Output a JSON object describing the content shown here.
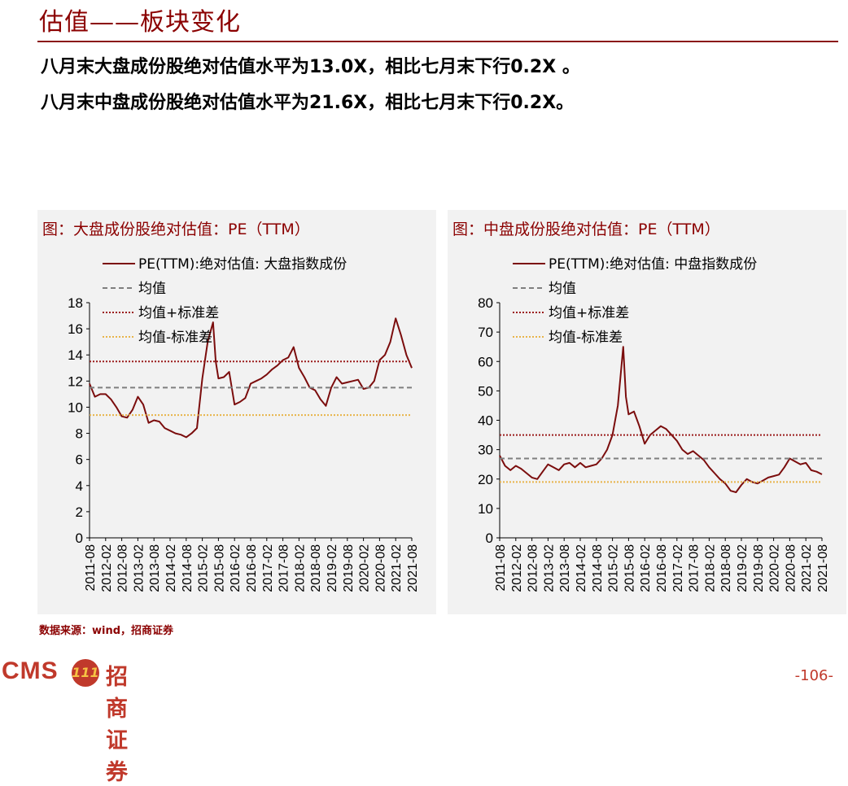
{
  "page": {
    "title": "估值——板块变化",
    "summary_line1": "八月末大盘成份股绝对估值水平为13.0X，相比七月末下行0.2X 。",
    "summary_line2": "八月末中盘成份股绝对估值水平为21.6X，相比七月末下行0.2X。",
    "source": "数据来源：wind，招商证券",
    "page_number": "-106-",
    "logo_text": "CMS",
    "logo_badge_text": "111",
    "logo_name": "招商证券"
  },
  "colors": {
    "series": "#7b0d0d",
    "mean": "#7f7f7f",
    "upper": "#9b1c1c",
    "lower": "#e8b44a",
    "panel_bg": "#f2f2f2",
    "accent": "#8b0000"
  },
  "chart_data": [
    {
      "type": "line",
      "title": "图：大盘成份股绝对估值：PE（TTM）",
      "legend_position": "top-left",
      "grid": false,
      "ylim": [
        0,
        18
      ],
      "y_ticks": [
        "0",
        "2",
        "4",
        "6",
        "8",
        "10",
        "12",
        "14",
        "16",
        "18"
      ],
      "x_ticks": [
        "2011-08",
        "2012-02",
        "2012-08",
        "2013-02",
        "2013-08",
        "2014-02",
        "2014-08",
        "2015-02",
        "2015-08",
        "2016-02",
        "2016-08",
        "2017-02",
        "2017-08",
        "2018-02",
        "2018-08",
        "2019-02",
        "2019-08",
        "2020-02",
        "2020-08",
        "2021-02",
        "2021-08"
      ],
      "series": [
        {
          "name": "PE(TTM):绝对估值: 大盘指数成份",
          "style": "solid",
          "points": [
            [
              "2011-08",
              11.8
            ],
            [
              "2011-10",
              10.8
            ],
            [
              "2011-12",
              11.0
            ],
            [
              "2012-02",
              11.0
            ],
            [
              "2012-04",
              10.6
            ],
            [
              "2012-06",
              10.0
            ],
            [
              "2012-08",
              9.3
            ],
            [
              "2012-10",
              9.2
            ],
            [
              "2012-12",
              9.8
            ],
            [
              "2013-02",
              10.8
            ],
            [
              "2013-04",
              10.2
            ],
            [
              "2013-06",
              8.8
            ],
            [
              "2013-08",
              9.0
            ],
            [
              "2013-10",
              8.9
            ],
            [
              "2013-12",
              8.4
            ],
            [
              "2014-02",
              8.2
            ],
            [
              "2014-04",
              8.0
            ],
            [
              "2014-06",
              7.9
            ],
            [
              "2014-08",
              7.7
            ],
            [
              "2014-10",
              8.0
            ],
            [
              "2014-12",
              8.4
            ],
            [
              "2015-02",
              12.2
            ],
            [
              "2015-04",
              15.0
            ],
            [
              "2015-06",
              16.5
            ],
            [
              "2015-07",
              13.5
            ],
            [
              "2015-08",
              12.2
            ],
            [
              "2015-10",
              12.3
            ],
            [
              "2015-12",
              12.7
            ],
            [
              "2016-02",
              10.2
            ],
            [
              "2016-04",
              10.4
            ],
            [
              "2016-06",
              10.7
            ],
            [
              "2016-08",
              11.8
            ],
            [
              "2016-10",
              12.0
            ],
            [
              "2016-12",
              12.2
            ],
            [
              "2017-02",
              12.5
            ],
            [
              "2017-04",
              12.9
            ],
            [
              "2017-06",
              13.2
            ],
            [
              "2017-08",
              13.6
            ],
            [
              "2017-10",
              13.8
            ],
            [
              "2017-12",
              14.6
            ],
            [
              "2018-02",
              13.0
            ],
            [
              "2018-04",
              12.3
            ],
            [
              "2018-06",
              11.5
            ],
            [
              "2018-08",
              11.3
            ],
            [
              "2018-10",
              10.6
            ],
            [
              "2018-12",
              10.1
            ],
            [
              "2019-02",
              11.5
            ],
            [
              "2019-04",
              12.3
            ],
            [
              "2019-06",
              11.8
            ],
            [
              "2019-08",
              11.9
            ],
            [
              "2019-10",
              12.0
            ],
            [
              "2019-12",
              12.1
            ],
            [
              "2020-02",
              11.4
            ],
            [
              "2020-04",
              11.5
            ],
            [
              "2020-06",
              12.0
            ],
            [
              "2020-08",
              13.6
            ],
            [
              "2020-10",
              14.0
            ],
            [
              "2020-12",
              15.0
            ],
            [
              "2021-02",
              16.8
            ],
            [
              "2021-04",
              15.5
            ],
            [
              "2021-06",
              14.0
            ],
            [
              "2021-08",
              13.0
            ]
          ]
        },
        {
          "name": "均值",
          "style": "dashed",
          "value": 11.5
        },
        {
          "name": "均值+标准差",
          "style": "dotted",
          "value": 13.5
        },
        {
          "name": "均值-标准差",
          "style": "dotted",
          "value": 9.4
        }
      ]
    },
    {
      "type": "line",
      "title": "图：中盘成份股绝对估值：PE（TTM）",
      "legend_position": "top-left",
      "grid": false,
      "ylim": [
        0,
        80
      ],
      "y_ticks": [
        "0",
        "10",
        "20",
        "30",
        "40",
        "50",
        "60",
        "70",
        "80"
      ],
      "x_ticks": [
        "2011-08",
        "2012-02",
        "2012-08",
        "2013-02",
        "2013-08",
        "2014-02",
        "2014-08",
        "2015-02",
        "2015-08",
        "2016-02",
        "2016-08",
        "2017-02",
        "2017-08",
        "2018-02",
        "2018-08",
        "2019-02",
        "2019-08",
        "2020-02",
        "2020-08",
        "2021-02",
        "2021-08"
      ],
      "series": [
        {
          "name": "PE(TTM):绝对估值: 中盘指数成份",
          "style": "solid",
          "points": [
            [
              "2011-08",
              28.0
            ],
            [
              "2011-10",
              24.5
            ],
            [
              "2011-12",
              23.0
            ],
            [
              "2012-02",
              24.5
            ],
            [
              "2012-04",
              23.5
            ],
            [
              "2012-06",
              22.0
            ],
            [
              "2012-08",
              20.5
            ],
            [
              "2012-10",
              20.0
            ],
            [
              "2012-12",
              22.5
            ],
            [
              "2013-02",
              25.0
            ],
            [
              "2013-04",
              24.0
            ],
            [
              "2013-06",
              23.0
            ],
            [
              "2013-08",
              25.0
            ],
            [
              "2013-10",
              25.5
            ],
            [
              "2013-12",
              24.0
            ],
            [
              "2014-02",
              25.5
            ],
            [
              "2014-04",
              24.0
            ],
            [
              "2014-06",
              24.5
            ],
            [
              "2014-08",
              25.0
            ],
            [
              "2014-10",
              27.0
            ],
            [
              "2014-12",
              30.0
            ],
            [
              "2015-02",
              35.0
            ],
            [
              "2015-04",
              45.0
            ],
            [
              "2015-06",
              65.0
            ],
            [
              "2015-07",
              48.0
            ],
            [
              "2015-08",
              42.0
            ],
            [
              "2015-10",
              43.0
            ],
            [
              "2015-12",
              38.0
            ],
            [
              "2016-02",
              32.0
            ],
            [
              "2016-04",
              35.0
            ],
            [
              "2016-06",
              36.5
            ],
            [
              "2016-08",
              38.0
            ],
            [
              "2016-10",
              37.0
            ],
            [
              "2016-12",
              35.0
            ],
            [
              "2017-02",
              33.0
            ],
            [
              "2017-04",
              30.0
            ],
            [
              "2017-06",
              28.5
            ],
            [
              "2017-08",
              29.5
            ],
            [
              "2017-10",
              28.0
            ],
            [
              "2017-12",
              26.5
            ],
            [
              "2018-02",
              24.0
            ],
            [
              "2018-04",
              22.0
            ],
            [
              "2018-06",
              20.0
            ],
            [
              "2018-08",
              18.5
            ],
            [
              "2018-10",
              16.0
            ],
            [
              "2018-12",
              15.5
            ],
            [
              "2019-02",
              18.0
            ],
            [
              "2019-04",
              20.0
            ],
            [
              "2019-06",
              19.0
            ],
            [
              "2019-08",
              18.5
            ],
            [
              "2019-10",
              19.5
            ],
            [
              "2019-12",
              20.5
            ],
            [
              "2020-02",
              21.0
            ],
            [
              "2020-04",
              21.5
            ],
            [
              "2020-06",
              24.0
            ],
            [
              "2020-08",
              27.0
            ],
            [
              "2020-10",
              26.0
            ],
            [
              "2020-12",
              25.0
            ],
            [
              "2021-02",
              25.5
            ],
            [
              "2021-04",
              23.0
            ],
            [
              "2021-06",
              22.5
            ],
            [
              "2021-08",
              21.6
            ]
          ]
        },
        {
          "name": "均值",
          "style": "dashed",
          "value": 27.0
        },
        {
          "name": "均值+标准差",
          "style": "dotted",
          "value": 35.0
        },
        {
          "name": "均值-标准差",
          "style": "dotted",
          "value": 19.0
        }
      ]
    }
  ]
}
